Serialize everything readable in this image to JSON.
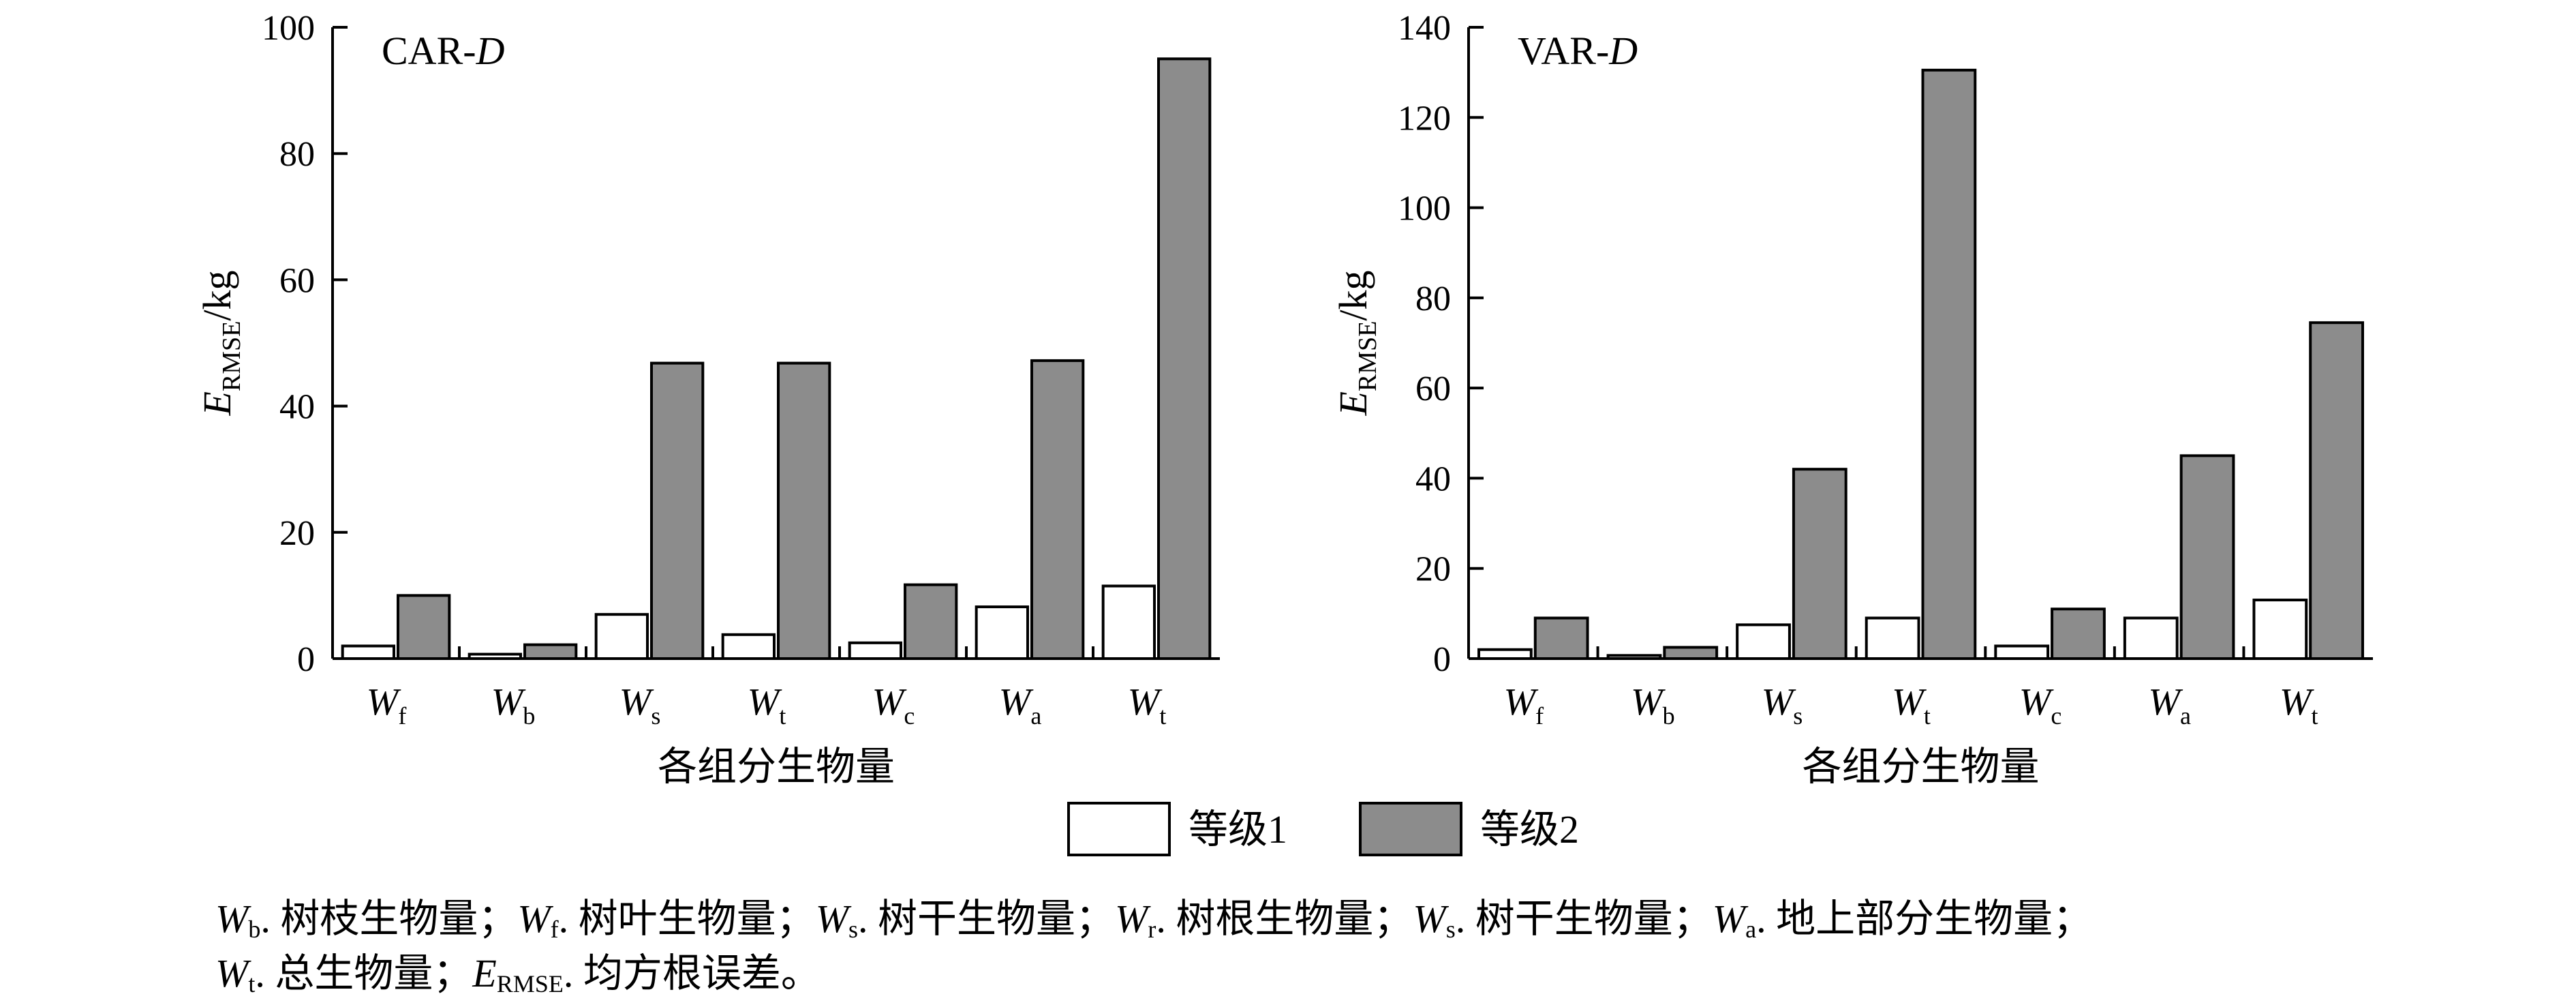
{
  "chart_data": [
    {
      "type": "bar",
      "panel_label": "CAR-",
      "panel_label_italic": "D",
      "ylabel_main": "E",
      "ylabel_sub": "RMSE",
      "ylabel_unit": "/kg",
      "xlabel": "各组分生物量",
      "ylim": [
        0,
        100
      ],
      "yticks": [
        0,
        20,
        40,
        60,
        80,
        100
      ],
      "categories": [
        {
          "main": "W",
          "sub": "f"
        },
        {
          "main": "W",
          "sub": "b"
        },
        {
          "main": "W",
          "sub": "s"
        },
        {
          "main": "W",
          "sub": "t"
        },
        {
          "main": "W",
          "sub": "c"
        },
        {
          "main": "W",
          "sub": "a"
        },
        {
          "main": "W",
          "sub": "t"
        }
      ],
      "series": [
        {
          "name": "等级1",
          "color": "#ffffff",
          "values": [
            2.0,
            0.7,
            7.0,
            3.8,
            2.5,
            8.2,
            11.5
          ]
        },
        {
          "name": "等级2",
          "color": "#8c8c8c",
          "values": [
            10.0,
            2.2,
            46.8,
            46.8,
            11.7,
            47.2,
            95.0
          ]
        }
      ]
    },
    {
      "type": "bar",
      "panel_label": "VAR-",
      "panel_label_italic": "D",
      "ylabel_main": "E",
      "ylabel_sub": "RMSE",
      "ylabel_unit": "/kg",
      "xlabel": "各组分生物量",
      "ylim": [
        0,
        140
      ],
      "yticks": [
        0,
        20,
        40,
        60,
        80,
        100,
        120,
        140
      ],
      "categories": [
        {
          "main": "W",
          "sub": "f"
        },
        {
          "main": "W",
          "sub": "b"
        },
        {
          "main": "W",
          "sub": "s"
        },
        {
          "main": "W",
          "sub": "t"
        },
        {
          "main": "W",
          "sub": "c"
        },
        {
          "main": "W",
          "sub": "a"
        },
        {
          "main": "W",
          "sub": "t"
        }
      ],
      "series": [
        {
          "name": "等级1",
          "color": "#ffffff",
          "values": [
            2.0,
            0.7,
            7.5,
            9.0,
            2.8,
            9.0,
            13.0
          ]
        },
        {
          "name": "等级2",
          "color": "#8c8c8c",
          "values": [
            9.0,
            2.5,
            42.0,
            130.5,
            11.0,
            45.0,
            74.5
          ]
        }
      ]
    }
  ],
  "legend": [
    {
      "label": "等级1",
      "color": "#ffffff"
    },
    {
      "label": "等级2",
      "color": "#8c8c8c"
    }
  ],
  "caption": {
    "line1": [
      {
        "main": "W",
        "sub": "b",
        "text": ". 树枝生物量；"
      },
      {
        "main": "W",
        "sub": "f",
        "text": ". 树叶生物量；"
      },
      {
        "main": "W",
        "sub": "s",
        "text": ". 树干生物量；"
      },
      {
        "main": "W",
        "sub": "r",
        "text": ". 树根生物量；"
      },
      {
        "main": "W",
        "sub": "s",
        "text": ". 树干生物量；"
      },
      {
        "main": "W",
        "sub": "a",
        "text": ". 地上部分生物量；"
      }
    ],
    "line2": [
      {
        "main": "W",
        "sub": "t",
        "text": ". 总生物量；"
      },
      {
        "main": "E",
        "sub": "RMSE",
        "text": ". 均方根误差。"
      }
    ]
  }
}
